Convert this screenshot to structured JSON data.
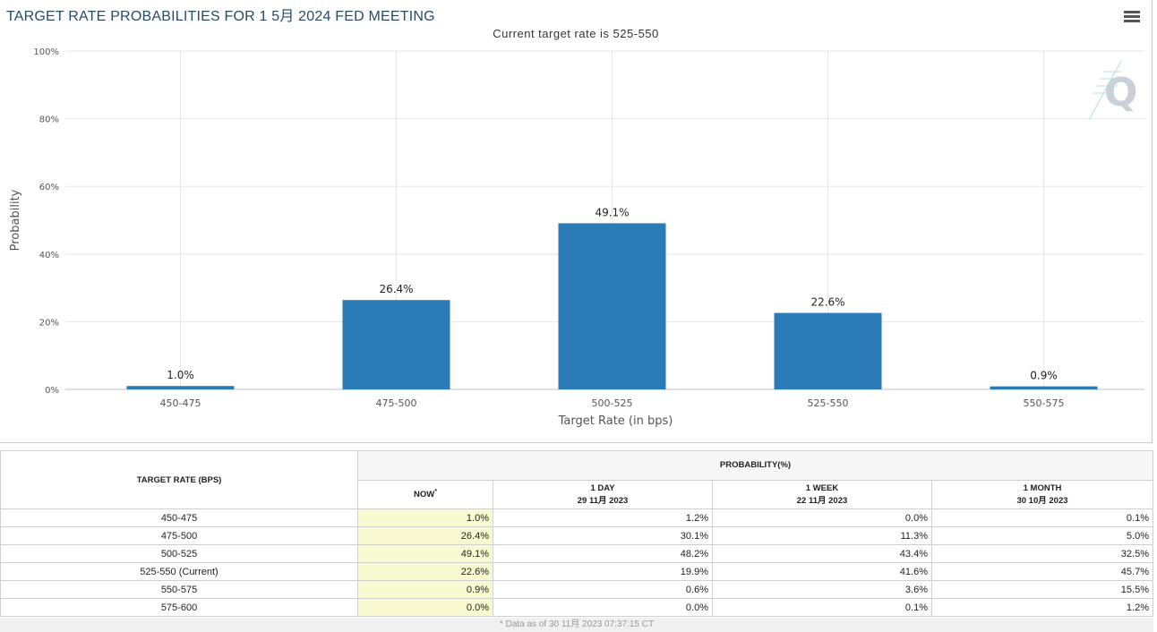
{
  "header": {
    "title": "TARGET RATE PROBABILITIES FOR 1 5月 2024 FED MEETING",
    "subtitle": "Current target rate is 525-550",
    "menu_icon": "hamburger-menu-icon",
    "watermark_icon": "q-logo-icon"
  },
  "chart_data": {
    "type": "bar",
    "title": "TARGET RATE PROBABILITIES FOR 1 5月 2024 FED MEETING",
    "subtitle": "Current target rate is 525-550",
    "xlabel": "Target Rate (in bps)",
    "ylabel": "Probability",
    "categories": [
      "450-475",
      "475-500",
      "500-525",
      "525-550",
      "550-575"
    ],
    "values": [
      1.0,
      26.4,
      49.1,
      22.6,
      0.9
    ],
    "data_labels": [
      "1.0%",
      "26.4%",
      "49.1%",
      "22.6%",
      "0.9%"
    ],
    "ylim": [
      0,
      100
    ],
    "yticks": [
      0,
      20,
      40,
      60,
      80,
      100
    ],
    "ytick_labels": [
      "0%",
      "20%",
      "40%",
      "60%",
      "80%",
      "100%"
    ],
    "grid": true,
    "bar_color": "#2b7bb6"
  },
  "table": {
    "header_rate": "TARGET RATE (BPS)",
    "header_probability": "PROBABILITY(%)",
    "columns": [
      {
        "label": "NOW",
        "sup": "*",
        "date": ""
      },
      {
        "label": "1 DAY",
        "date": "29 11月 2023"
      },
      {
        "label": "1 WEEK",
        "date": "22 11月 2023"
      },
      {
        "label": "1 MONTH",
        "date": "30 10月 2023"
      }
    ],
    "rows": [
      {
        "rate": "450-475",
        "now": "1.0%",
        "day": "1.2%",
        "week": "0.0%",
        "month": "0.1%"
      },
      {
        "rate": "475-500",
        "now": "26.4%",
        "day": "30.1%",
        "week": "11.3%",
        "month": "5.0%"
      },
      {
        "rate": "500-525",
        "now": "49.1%",
        "day": "48.2%",
        "week": "43.4%",
        "month": "32.5%"
      },
      {
        "rate": "525-550 (Current)",
        "now": "22.6%",
        "day": "19.9%",
        "week": "41.6%",
        "month": "45.7%"
      },
      {
        "rate": "550-575",
        "now": "0.9%",
        "day": "0.6%",
        "week": "3.6%",
        "month": "15.5%"
      },
      {
        "rate": "575-600",
        "now": "0.0%",
        "day": "0.0%",
        "week": "0.1%",
        "month": "1.2%"
      }
    ],
    "footnote": "* Data as of 30 11月 2023 07:37:15 CT"
  }
}
